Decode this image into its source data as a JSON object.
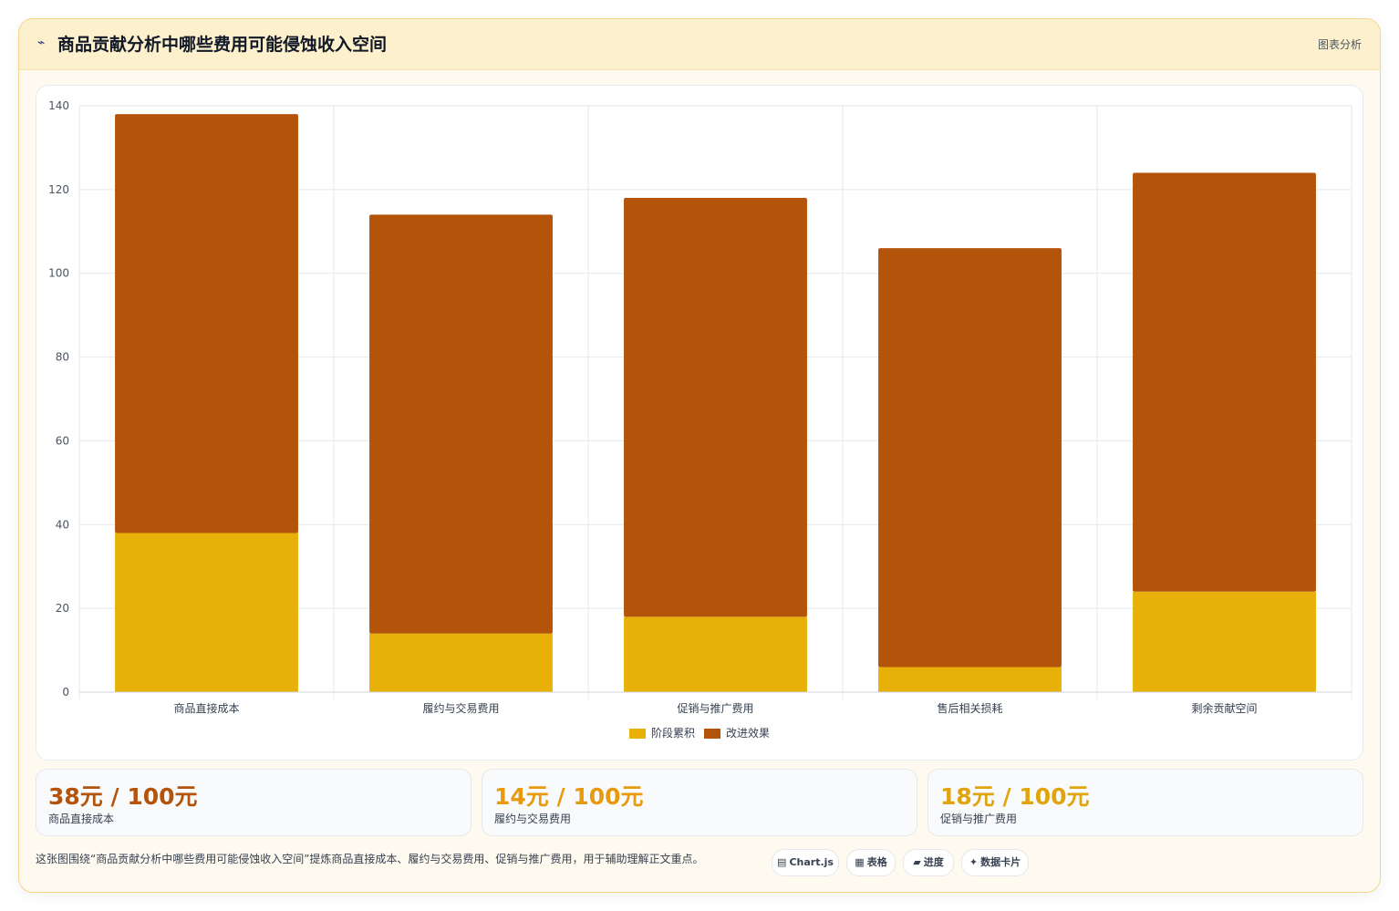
{
  "header": {
    "icon": "chart-trend-icon",
    "title": "商品贡献分析中哪些费用可能侵蚀收入空间",
    "tag": "图表分析"
  },
  "chart_data": {
    "type": "bar",
    "stacked": true,
    "categories": [
      "商品直接成本",
      "履约与交易费用",
      "促销与推广费用",
      "售后相关损耗",
      "剩余贡献空间"
    ],
    "series": [
      {
        "name": "阶段累积",
        "values": [
          38,
          14,
          18,
          6,
          24
        ],
        "color": "#e8b10a"
      },
      {
        "name": "改进效果",
        "values": [
          100,
          100,
          100,
          100,
          100
        ],
        "color": "#b4530a"
      }
    ],
    "ylim": [
      0,
      140
    ],
    "yticks": [
      "0",
      "20",
      "40",
      "60",
      "80",
      "100",
      "120",
      "140"
    ],
    "grid": true,
    "legend": "bottom"
  },
  "stats": [
    {
      "value": "38元 / 100元",
      "label": "商品直接成本",
      "color": "#b4530a"
    },
    {
      "value": "14元 / 100元",
      "label": "履约与交易费用",
      "color": "#e89a0f"
    },
    {
      "value": "18元 / 100元",
      "label": "促销与推广费用",
      "color": "#e0a40c"
    }
  ],
  "caption": "这张图围绕“商品贡献分析中哪些费用可能侵蚀收入空间”提炼商品直接成本、履约与交易费用、促销与推广费用，用于辅助理解正文重点。",
  "chips": [
    {
      "icon": "▤",
      "label": "Chart.js"
    },
    {
      "icon": "▦",
      "label": "表格"
    },
    {
      "icon": "▰",
      "label": "进度"
    },
    {
      "icon": "✦",
      "label": "数据卡片"
    }
  ]
}
